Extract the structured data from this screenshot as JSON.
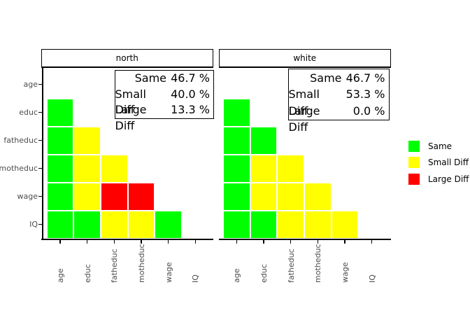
{
  "chart_data": {
    "type": "heatmap",
    "title": "",
    "categories": [
      "age",
      "educ",
      "fatheduc",
      "motheduc",
      "wage",
      "IQ"
    ],
    "row_categories": [
      "educ",
      "fatheduc",
      "motheduc",
      "wage",
      "IQ"
    ],
    "axis": {
      "x_label_rotation": 90,
      "grid": false
    },
    "legend": {
      "position": "right",
      "entries": [
        {
          "label": "Same",
          "color": "#00FF00"
        },
        {
          "label": "Small Diff",
          "color": "#FFFF00"
        },
        {
          "label": "Large Diff",
          "color": "#FF0000"
        }
      ]
    },
    "panels": [
      {
        "strip": "north",
        "stats": [
          {
            "label": "Same",
            "value": "46.7 %"
          },
          {
            "label": "Small Diff",
            "value": "40.0 %"
          },
          {
            "label": "Large Diff",
            "value": "13.3 %"
          }
        ],
        "cells": [
          [
            "Same"
          ],
          [
            "Same",
            "Small Diff"
          ],
          [
            "Same",
            "Small Diff",
            "Small Diff"
          ],
          [
            "Same",
            "Small Diff",
            "Large Diff",
            "Large Diff"
          ],
          [
            "Same",
            "Same",
            "Small Diff",
            "Small Diff",
            "Same"
          ]
        ]
      },
      {
        "strip": "white",
        "stats": [
          {
            "label": "Same",
            "value": "46.7 %"
          },
          {
            "label": "Small Diff",
            "value": "53.3 %"
          },
          {
            "label": "Large Diff",
            "value": "0.0 %"
          }
        ],
        "cells": [
          [
            "Same"
          ],
          [
            "Same",
            "Same"
          ],
          [
            "Same",
            "Small Diff",
            "Small Diff"
          ],
          [
            "Same",
            "Small Diff",
            "Small Diff",
            "Small Diff"
          ],
          [
            "Same",
            "Same",
            "Small Diff",
            "Small Diff",
            "Small Diff"
          ]
        ]
      }
    ]
  }
}
